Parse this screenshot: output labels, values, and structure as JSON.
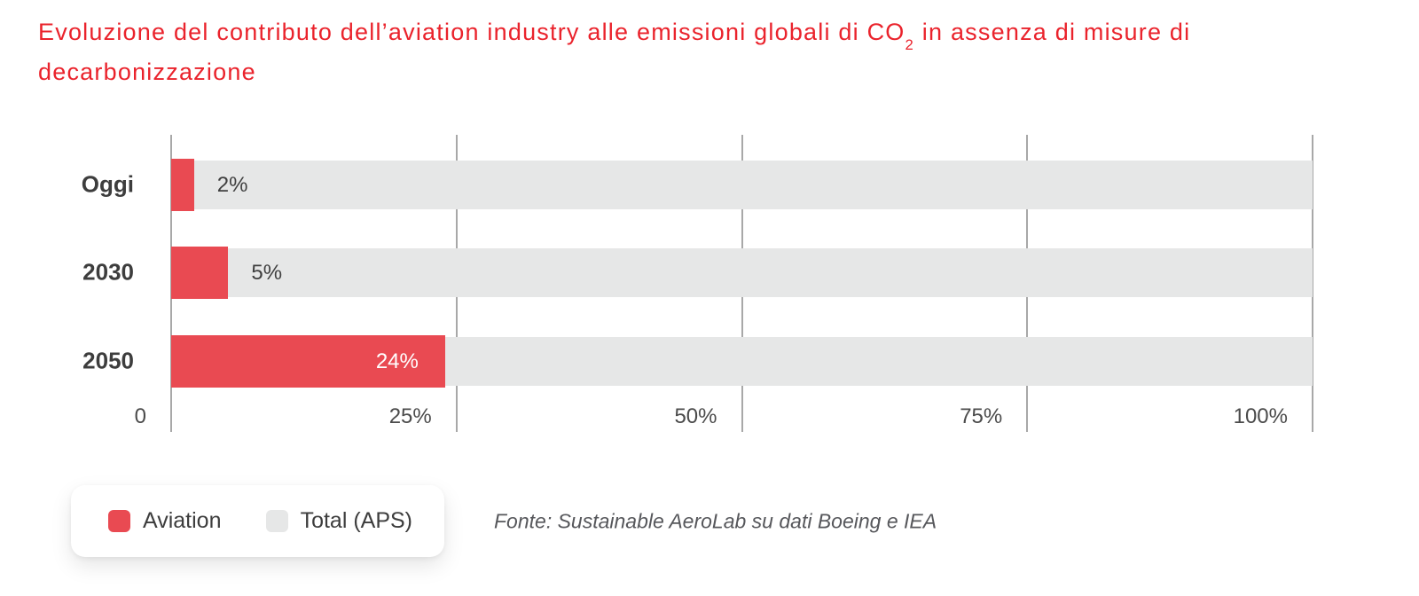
{
  "title": {
    "before_subscript": "Evoluzione del contributo dell’aviation industry alle emissioni globali di CO",
    "subscript": "2",
    "after_subscript": " in assenza di misure di",
    "line2": "decarbonizzazione"
  },
  "colors": {
    "title_red": "#ea232c",
    "aviation_red": "#e94a52",
    "total_gray": "#e6e7e7",
    "gridline_gray": "#a8a8a8",
    "label_dark": "#3d3d3d",
    "tick_gray": "#4b4b4b",
    "value_label_inside": "#ffffff",
    "source_gray": "#56575b"
  },
  "chart_data": {
    "type": "bar",
    "orientation": "horizontal",
    "categories": [
      "Oggi",
      "2030",
      "2050"
    ],
    "series": [
      {
        "name": "Aviation",
        "values": [
          2,
          5,
          24
        ],
        "color": "#e94a52"
      },
      {
        "name": "Total (APS)",
        "values": [
          100,
          100,
          100
        ],
        "color": "#e6e7e7"
      }
    ],
    "value_labels": [
      "2%",
      "5%",
      "24%"
    ],
    "x_ticks": [
      {
        "value": 0,
        "label": "0"
      },
      {
        "value": 25,
        "label": "25%"
      },
      {
        "value": 50,
        "label": "50%"
      },
      {
        "value": 75,
        "label": "75%"
      },
      {
        "value": 100,
        "label": "100%"
      }
    ],
    "xlim": [
      0,
      100
    ],
    "grid": true,
    "legend_position": "bottom-left"
  },
  "legend": {
    "items": [
      {
        "label": "Aviation",
        "color": "#e94a52"
      },
      {
        "label": "Total (APS)",
        "color": "#e6e7e7"
      }
    ]
  },
  "source": {
    "text": "Fonte: Sustainable AeroLab su dati Boeing e IEA"
  }
}
